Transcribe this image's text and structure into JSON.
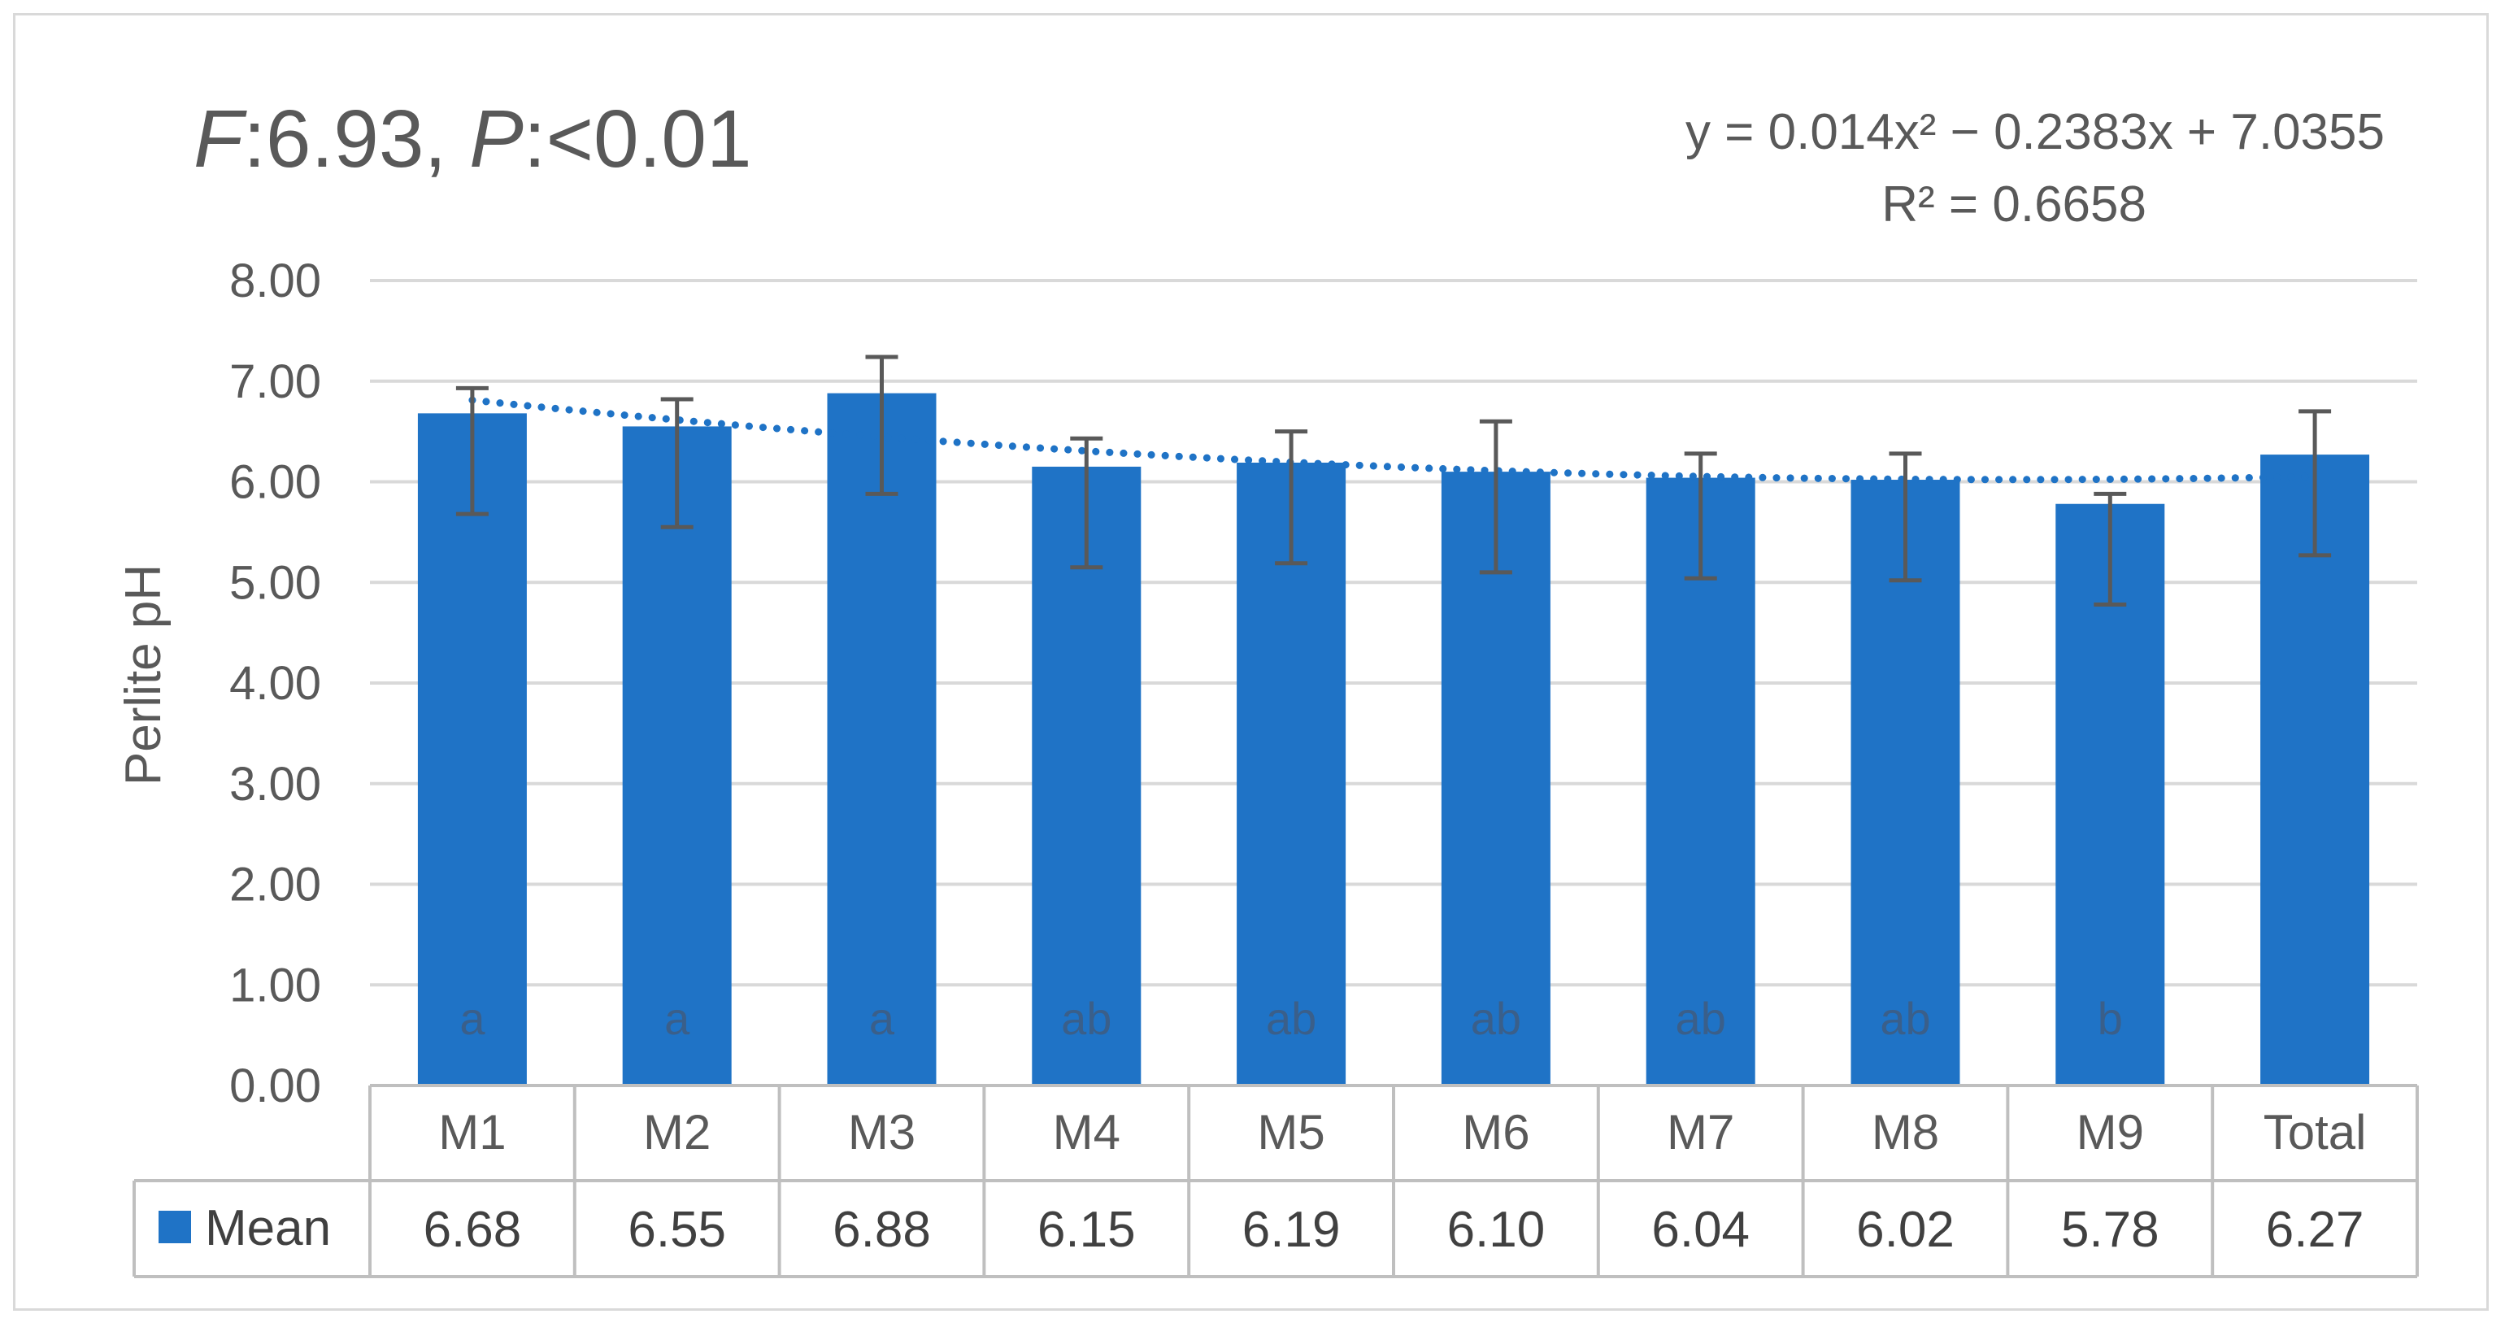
{
  "chart_data": {
    "type": "bar",
    "title": "F:6.93, P:<0.01",
    "title_parts": {
      "f_label": "F",
      "f_value": ":6.93, ",
      "p_label": "P",
      "p_value": ":<0.01"
    },
    "trendline": {
      "type": "polynomial (order 2)",
      "equation": "y = 0.014x² − 0.2383x + 7.0355",
      "r_squared": "R² = 0.6658",
      "coefficients": [
        0.014,
        -0.2383,
        7.0355
      ],
      "style": "dotted"
    },
    "ylabel": "Perlite pH",
    "xlabel": "",
    "ylim": [
      0,
      8
    ],
    "ytick_values": [
      0,
      1,
      2,
      3,
      4,
      5,
      6,
      7,
      8
    ],
    "yticks": [
      "0.00",
      "1.00",
      "2.00",
      "3.00",
      "4.00",
      "5.00",
      "6.00",
      "7.00",
      "8.00"
    ],
    "grid": true,
    "legend_in_table": true,
    "categories": [
      "M1",
      "M2",
      "M3",
      "M4",
      "M5",
      "M6",
      "M7",
      "M8",
      "M9",
      "Total"
    ],
    "series": [
      {
        "name": "Mean",
        "color": "#1f73c6",
        "values": [
          6.68,
          6.55,
          6.88,
          6.15,
          6.19,
          6.1,
          6.04,
          6.02,
          5.78,
          6.27
        ],
        "value_labels": [
          "6.68",
          "6.55",
          "6.88",
          "6.15",
          "6.19",
          "6.10",
          "6.04",
          "6.02",
          "5.78",
          "6.27"
        ],
        "error_low": [
          5.68,
          5.55,
          5.88,
          5.15,
          5.19,
          5.1,
          5.04,
          5.02,
          4.78,
          5.27
        ],
        "error_high": [
          6.93,
          6.82,
          7.24,
          6.43,
          6.5,
          6.6,
          6.28,
          6.28,
          5.88,
          6.7
        ]
      }
    ],
    "group_letters": [
      "a",
      "a",
      "a",
      "ab",
      "ab",
      "ab",
      "ab",
      "ab",
      "b",
      ""
    ]
  }
}
